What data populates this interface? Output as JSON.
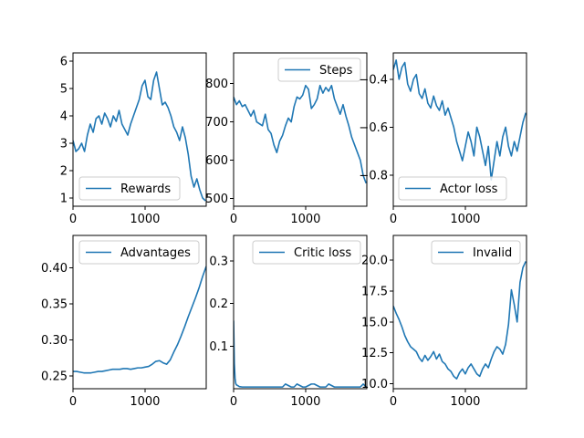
{
  "chart_data": [
    {
      "type": "line",
      "name": "Rewards",
      "legend_position": "lower center",
      "xlim": [
        0,
        1850
      ],
      "ylim": [
        0.7,
        6.3
      ],
      "xticks": [
        0,
        1000
      ],
      "xtick_labels": [
        "0",
        "1000"
      ],
      "yticks": [
        1,
        2,
        3,
        4,
        5,
        6
      ],
      "ytick_labels": [
        "1",
        "2",
        "3",
        "4",
        "5",
        "6"
      ],
      "series": [
        {
          "name": "Rewards",
          "color": "#1f77b4",
          "x": [
            0,
            40,
            80,
            120,
            160,
            200,
            240,
            280,
            320,
            360,
            400,
            440,
            480,
            520,
            560,
            600,
            640,
            680,
            720,
            760,
            800,
            840,
            880,
            920,
            960,
            1000,
            1040,
            1080,
            1120,
            1160,
            1200,
            1240,
            1280,
            1320,
            1360,
            1400,
            1440,
            1480,
            1520,
            1560,
            1600,
            1640,
            1680,
            1720,
            1760,
            1800,
            1840
          ],
          "y": [
            3.1,
            2.7,
            2.8,
            3.0,
            2.7,
            3.3,
            3.7,
            3.4,
            3.9,
            4.0,
            3.7,
            4.1,
            3.9,
            3.6,
            4.0,
            3.8,
            4.2,
            3.7,
            3.5,
            3.3,
            3.7,
            4.0,
            4.3,
            4.6,
            5.1,
            5.3,
            4.7,
            4.6,
            5.3,
            5.6,
            5.0,
            4.4,
            4.5,
            4.3,
            4.0,
            3.6,
            3.4,
            3.1,
            3.6,
            3.2,
            2.6,
            1.8,
            1.4,
            1.7,
            1.3,
            1.0,
            0.9
          ]
        }
      ]
    },
    {
      "type": "line",
      "name": "Steps",
      "legend_position": "upper right",
      "xlim": [
        0,
        1850
      ],
      "ylim": [
        480,
        880
      ],
      "xticks": [
        0,
        1000
      ],
      "xtick_labels": [
        "0",
        "1000"
      ],
      "yticks": [
        500,
        600,
        700,
        800
      ],
      "ytick_labels": [
        "500",
        "600",
        "700",
        "800"
      ],
      "series": [
        {
          "name": "Steps",
          "color": "#1f77b4",
          "x": [
            0,
            40,
            80,
            120,
            160,
            200,
            240,
            280,
            320,
            360,
            400,
            440,
            480,
            520,
            560,
            600,
            640,
            680,
            720,
            760,
            800,
            840,
            880,
            920,
            960,
            1000,
            1040,
            1080,
            1120,
            1160,
            1200,
            1240,
            1280,
            1320,
            1360,
            1400,
            1440,
            1480,
            1520,
            1560,
            1600,
            1640,
            1680,
            1720,
            1760,
            1800,
            1840
          ],
          "y": [
            765,
            745,
            755,
            740,
            745,
            730,
            715,
            730,
            700,
            695,
            690,
            720,
            680,
            670,
            640,
            620,
            650,
            665,
            690,
            710,
            700,
            740,
            765,
            760,
            770,
            795,
            785,
            735,
            745,
            760,
            795,
            775,
            790,
            780,
            795,
            760,
            740,
            720,
            745,
            715,
            690,
            660,
            640,
            620,
            600,
            560,
            540
          ]
        }
      ]
    },
    {
      "type": "line",
      "name": "Actor loss",
      "legend_position": "lower center",
      "xlim": [
        0,
        1850
      ],
      "ylim": [
        -0.93,
        -0.29
      ],
      "xticks": [
        0,
        1000
      ],
      "xtick_labels": [
        "0",
        "1000"
      ],
      "yticks": [
        -0.4,
        -0.6,
        -0.8
      ],
      "ytick_labels": [
        "−0.4",
        "−0.6",
        "−0.8"
      ],
      "series": [
        {
          "name": "Actor loss",
          "color": "#1f77b4",
          "x": [
            0,
            40,
            80,
            120,
            160,
            200,
            240,
            280,
            320,
            360,
            400,
            440,
            480,
            520,
            560,
            600,
            640,
            680,
            720,
            760,
            800,
            840,
            880,
            920,
            960,
            1000,
            1040,
            1080,
            1120,
            1160,
            1200,
            1240,
            1280,
            1320,
            1360,
            1400,
            1440,
            1480,
            1520,
            1560,
            1600,
            1640,
            1680,
            1720,
            1760,
            1800,
            1840
          ],
          "y": [
            -0.36,
            -0.32,
            -0.4,
            -0.35,
            -0.33,
            -0.42,
            -0.45,
            -0.4,
            -0.38,
            -0.46,
            -0.48,
            -0.44,
            -0.5,
            -0.52,
            -0.47,
            -0.51,
            -0.53,
            -0.49,
            -0.55,
            -0.52,
            -0.56,
            -0.6,
            -0.66,
            -0.7,
            -0.74,
            -0.68,
            -0.62,
            -0.66,
            -0.72,
            -0.6,
            -0.64,
            -0.7,
            -0.76,
            -0.68,
            -0.82,
            -0.74,
            -0.66,
            -0.72,
            -0.64,
            -0.6,
            -0.68,
            -0.72,
            -0.66,
            -0.7,
            -0.64,
            -0.58,
            -0.54
          ]
        }
      ]
    },
    {
      "type": "line",
      "name": "Advantages",
      "legend_position": "upper left",
      "xlim": [
        0,
        1850
      ],
      "ylim": [
        0.232,
        0.445
      ],
      "xticks": [
        0,
        1000
      ],
      "xtick_labels": [
        "0",
        "1000"
      ],
      "yticks": [
        0.25,
        0.3,
        0.35,
        0.4
      ],
      "ytick_labels": [
        "0.25",
        "0.30",
        "0.35",
        "0.40"
      ],
      "series": [
        {
          "name": "Advantages",
          "color": "#1f77b4",
          "x": [
            0,
            50,
            100,
            150,
            200,
            250,
            300,
            350,
            400,
            450,
            500,
            550,
            600,
            650,
            700,
            750,
            800,
            850,
            900,
            950,
            1000,
            1050,
            1100,
            1150,
            1200,
            1250,
            1300,
            1350,
            1400,
            1450,
            1500,
            1550,
            1600,
            1650,
            1700,
            1750,
            1800,
            1850
          ],
          "y": [
            0.256,
            0.256,
            0.255,
            0.254,
            0.254,
            0.254,
            0.255,
            0.256,
            0.256,
            0.257,
            0.258,
            0.259,
            0.259,
            0.259,
            0.26,
            0.26,
            0.259,
            0.26,
            0.261,
            0.261,
            0.262,
            0.263,
            0.266,
            0.27,
            0.271,
            0.268,
            0.266,
            0.272,
            0.283,
            0.293,
            0.305,
            0.318,
            0.332,
            0.345,
            0.358,
            0.372,
            0.388,
            0.402
          ]
        }
      ]
    },
    {
      "type": "line",
      "name": "Critic loss",
      "legend_position": "upper right",
      "xlim": [
        0,
        1850
      ],
      "ylim": [
        0.0,
        0.36
      ],
      "xticks": [
        0,
        1000
      ],
      "xtick_labels": [
        "0",
        "1000"
      ],
      "yticks": [
        0.1,
        0.2,
        0.3
      ],
      "ytick_labels": [
        "0.1",
        "0.2",
        "0.3"
      ],
      "series": [
        {
          "name": "Critic loss",
          "color": "#1f77b4",
          "x": [
            0,
            10,
            20,
            30,
            40,
            60,
            80,
            120,
            160,
            240,
            320,
            360,
            400,
            480,
            560,
            640,
            680,
            720,
            800,
            840,
            880,
            960,
            1000,
            1080,
            1120,
            1200,
            1280,
            1320,
            1400,
            1480,
            1560,
            1640,
            1720,
            1760,
            1800,
            1840
          ],
          "y": [
            0.16,
            0.06,
            0.025,
            0.012,
            0.009,
            0.007,
            0.005,
            0.004,
            0.004,
            0.004,
            0.004,
            0.004,
            0.004,
            0.004,
            0.004,
            0.004,
            0.004,
            0.011,
            0.004,
            0.004,
            0.011,
            0.004,
            0.004,
            0.011,
            0.011,
            0.004,
            0.004,
            0.011,
            0.004,
            0.004,
            0.004,
            0.004,
            0.004,
            0.004,
            0.011,
            0.004
          ]
        }
      ]
    },
    {
      "type": "line",
      "name": "Invalid",
      "legend_position": "upper right",
      "xlim": [
        0,
        1850
      ],
      "ylim": [
        9.6,
        22.0
      ],
      "xticks": [
        0,
        1000
      ],
      "xtick_labels": [
        "0",
        "1000"
      ],
      "yticks": [
        10.0,
        12.5,
        15.0,
        17.5,
        20.0
      ],
      "ytick_labels": [
        "10.0",
        "12.5",
        "15.0",
        "17.5",
        "20.0"
      ],
      "series": [
        {
          "name": "Invalid",
          "color": "#1f77b4",
          "x": [
            0,
            40,
            80,
            120,
            160,
            200,
            240,
            280,
            320,
            360,
            400,
            440,
            480,
            520,
            560,
            600,
            640,
            680,
            720,
            760,
            800,
            840,
            880,
            920,
            960,
            1000,
            1040,
            1080,
            1120,
            1160,
            1200,
            1240,
            1280,
            1320,
            1360,
            1400,
            1440,
            1480,
            1520,
            1560,
            1600,
            1640,
            1680,
            1720,
            1760,
            1800,
            1840
          ],
          "y": [
            16.3,
            15.7,
            15.2,
            14.6,
            13.9,
            13.4,
            13.0,
            12.8,
            12.6,
            12.1,
            11.8,
            12.3,
            11.9,
            12.2,
            12.6,
            12.0,
            12.4,
            11.8,
            11.6,
            11.2,
            11.0,
            10.6,
            10.4,
            10.9,
            11.2,
            10.8,
            11.3,
            11.6,
            11.2,
            10.8,
            10.6,
            11.2,
            11.6,
            11.3,
            12.0,
            12.6,
            13.0,
            12.8,
            12.4,
            13.2,
            14.8,
            17.6,
            16.4,
            15.0,
            18.2,
            19.4,
            19.9
          ]
        }
      ]
    }
  ]
}
